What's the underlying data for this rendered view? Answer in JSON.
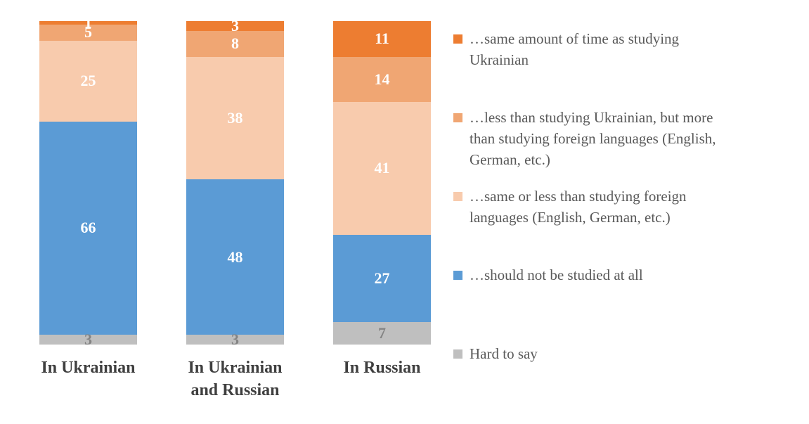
{
  "chart_data": {
    "type": "bar",
    "subtype": "stacked-column-100",
    "title": "",
    "categories": [
      "In Ukrainian",
      "In Ukrainian and Russian",
      "In Russian"
    ],
    "series": [
      {
        "name": "Hard to say",
        "color": "#BFBFBF",
        "label_color": "#848484",
        "values": [
          3,
          3,
          7
        ]
      },
      {
        "name": "…should not be studied at all",
        "color": "#5B9BD5",
        "label_color": "#FFFFFF",
        "values": [
          66,
          48,
          27
        ]
      },
      {
        "name": "…same or less than studying foreign languages (English, German, etc.)",
        "color": "#F8CBAD",
        "label_color": "#FFFFFF",
        "values": [
          25,
          38,
          41
        ]
      },
      {
        "name": "…less than studying Ukrainian, but more than studying foreign languages (English, German, etc.)",
        "color": "#F0A673",
        "label_color": "#FFFFFF",
        "values": [
          5,
          8,
          14
        ]
      },
      {
        "name": "…same amount of time as studying Ukrainian",
        "color": "#ED7D31",
        "label_color": "#FFFFFF",
        "values": [
          1,
          3,
          11
        ]
      }
    ],
    "stack_order_bottom_to_top": [
      "Hard to say",
      "…should not be studied at all",
      "…same or less than studying foreign languages (English, German, etc.)",
      "…less than studying Ukrainian, but more than studying foreign languages (English, German, etc.)",
      "…same amount of time as studying Ukrainian"
    ],
    "ylim": [
      0,
      100
    ],
    "grid": false,
    "legend_position": "right",
    "value_labels": "inside-center"
  },
  "axis": {
    "category_labels": [
      "In Ukrainian",
      "In Ukrainian\nand Russian",
      "In Russian"
    ]
  },
  "legend": {
    "items": [
      {
        "label": "…same amount of time as studying\nUkrainian",
        "color": "#ED7D31"
      },
      {
        "label": "…less than studying Ukrainian, but more\nthan studying foreign languages (English,\nGerman, etc.)",
        "color": "#F0A673"
      },
      {
        "label": "…same or less than studying foreign\nlanguages (English, German, etc.)",
        "color": "#F8CBAD"
      },
      {
        "label": "…should not be studied at all",
        "color": "#5B9BD5"
      },
      {
        "label": "Hard to say",
        "color": "#BFBFBF"
      }
    ]
  }
}
